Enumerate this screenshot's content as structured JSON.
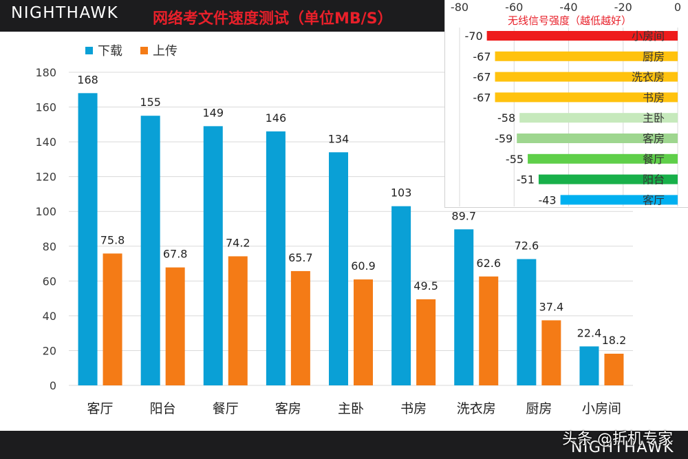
{
  "header": {
    "brand": "NIGHTHAWK",
    "title": "网络考文件速度测试（单位MB/S）"
  },
  "footer": {
    "brand": "NIGHTHAWK",
    "watermark": "头条 @折机专家"
  },
  "colors": {
    "download": "#0aa0d6",
    "upload": "#f47b16"
  },
  "chart_data": [
    {
      "type": "bar",
      "title": "网络考文件速度测试（单位MB/S）",
      "categories": [
        "客厅",
        "阳台",
        "餐厅",
        "客房",
        "主卧",
        "书房",
        "洗衣房",
        "厨房",
        "小房间"
      ],
      "series": [
        {
          "name": "下载",
          "values": [
            168,
            155,
            149,
            146,
            134,
            103,
            89.7,
            72.6,
            22.4
          ]
        },
        {
          "name": "上传",
          "values": [
            75.8,
            67.8,
            74.2,
            65.7,
            60.9,
            49.5,
            62.6,
            37.4,
            18.2
          ]
        }
      ],
      "ylim": [
        0,
        180
      ],
      "yticks": [
        0,
        20,
        40,
        60,
        80,
        100,
        120,
        140,
        160,
        180
      ],
      "grid": true,
      "legend": "top-left"
    },
    {
      "type": "bar",
      "orientation": "horizontal",
      "title": "无线信号强度（越低越好）",
      "categories": [
        "小房间",
        "厨房",
        "洗衣房",
        "书房",
        "主卧",
        "客房",
        "餐厅",
        "阳台",
        "客厅"
      ],
      "values": [
        -70,
        -67,
        -67,
        -67,
        -58,
        -59,
        -55,
        -51,
        -43
      ],
      "colors": [
        "#ee1c1c",
        "#ffc20e",
        "#ffc20e",
        "#ffc20e",
        "#c6e9bc",
        "#9ed68f",
        "#5fcf4a",
        "#18b04a",
        "#00b0f0"
      ],
      "xlim": [
        -80,
        0
      ],
      "xticks": [
        -80,
        -60,
        -40,
        -20,
        0
      ],
      "grid": true
    }
  ]
}
